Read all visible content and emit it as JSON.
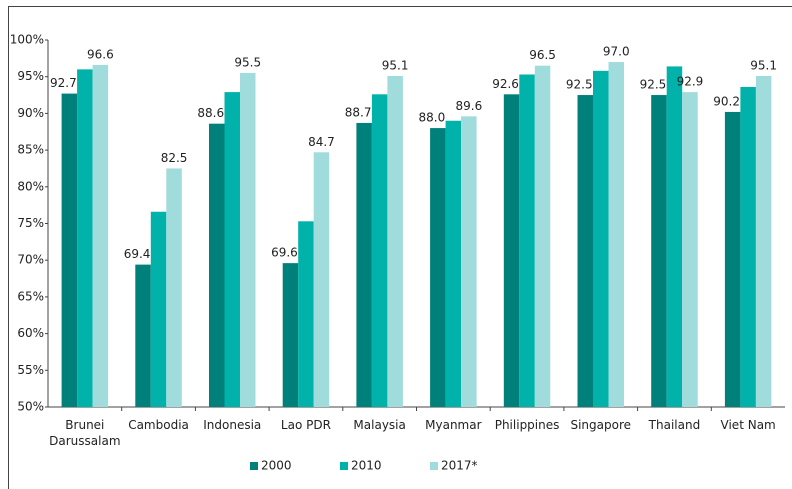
{
  "chart_data": {
    "type": "bar",
    "categories": [
      "Brunei Darussalam",
      "Cambodia",
      "Indonesia",
      "Lao PDR",
      "Malaysia",
      "Myanmar",
      "Philippines",
      "Singapore",
      "Thailand",
      "Viet Nam"
    ],
    "series": [
      {
        "name": "2000",
        "color": "#00807a",
        "values": [
          92.7,
          69.4,
          88.6,
          69.6,
          88.7,
          88.0,
          92.6,
          92.5,
          92.5,
          90.2
        ],
        "value_labels": [
          "92.7",
          "69.4",
          "88.6",
          "69.6",
          "88.7",
          "88.0",
          "92.6",
          "92.5",
          "92.5",
          "90.2"
        ]
      },
      {
        "name": "2010",
        "color": "#00b2a9",
        "values": [
          96.0,
          76.6,
          92.9,
          75.3,
          92.6,
          89.0,
          95.3,
          95.8,
          96.4,
          93.6
        ]
      },
      {
        "name": "2017*",
        "color": "#a0dcdc",
        "values": [
          96.6,
          82.5,
          95.5,
          84.7,
          95.1,
          89.6,
          96.5,
          97.0,
          92.9,
          95.1
        ],
        "value_labels": [
          "96.6",
          "82.5",
          "95.5",
          "84.7",
          "95.1",
          "89.6",
          "96.5",
          "97.0",
          "92.9",
          "95.1"
        ]
      }
    ],
    "ylim": [
      50,
      100
    ],
    "yticks": [
      {
        "value": 50,
        "label": "50%"
      },
      {
        "value": 55,
        "label": "55%"
      },
      {
        "value": 60,
        "label": "60%"
      },
      {
        "value": 65,
        "label": "65%"
      },
      {
        "value": 70,
        "label": "70%"
      },
      {
        "value": 75,
        "label": "75%"
      },
      {
        "value": 80,
        "label": "80%"
      },
      {
        "value": 85,
        "label": "85%"
      },
      {
        "value": 90,
        "label": "90%"
      },
      {
        "value": 95,
        "label": "95%"
      },
      {
        "value": 100,
        "label": "100%"
      }
    ],
    "legend": "bottom"
  }
}
